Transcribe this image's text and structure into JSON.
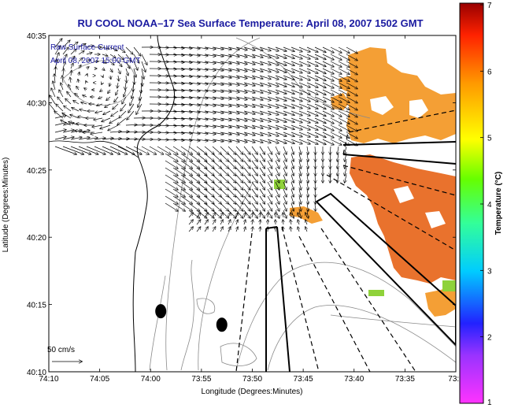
{
  "chart_data": {
    "type": "scatter",
    "title": "RU COOL  NOAA–17  Sea Surface Temperature:  April 08, 2007 1502 GMT",
    "legend": {
      "line1": "Raw Surface Current",
      "line2": "April 08, 2007 15:00 GMT",
      "placement": "top-left"
    },
    "xlabel": "Longitude (Degrees:Minutes)",
    "ylabel": "Latitude (Degrees:Minutes)",
    "x_ticks": [
      "74:10",
      "74:05",
      "74:00",
      "73:55",
      "73:50",
      "73:45",
      "73:40",
      "73:35",
      "73:3"
    ],
    "y_ticks": [
      "40:35",
      "40:30",
      "40:25",
      "40:20",
      "40:15",
      "40:10"
    ],
    "xlim": [
      -74.1667,
      -73.5
    ],
    "ylim": [
      40.1667,
      40.5833
    ],
    "scale_label": "50 cm/s",
    "colorbar": {
      "label": "Temperature (°C)",
      "ticks": [
        "1",
        "2",
        "3",
        "4",
        "5",
        "6",
        "7"
      ],
      "range": [
        1,
        7
      ]
    },
    "colors": {
      "title": "#1a1aa0",
      "sst_main": "#f39a2a",
      "sst_dark": "#e86a22",
      "sst_green": "#8fd23a",
      "contour": "#8a8a8a"
    },
    "stations": [
      {
        "lon": -73.9833,
        "lat": 40.2417
      },
      {
        "lon": -73.8833,
        "lat": 40.225
      }
    ]
  }
}
